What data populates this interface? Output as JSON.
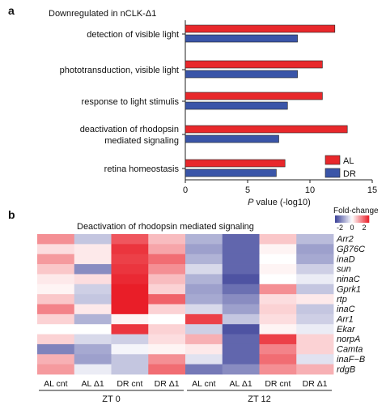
{
  "panel_a": {
    "label": "a",
    "subtitle": "Downregulated in nCLK-Δ1",
    "xlabel_italic": "P",
    "xlabel_rest": " value (-log10)"
  },
  "panel_b": {
    "label": "b",
    "title": "Deactivation of rhodopsin mediated signaling",
    "colorbar_title": "Fold-change",
    "colorbar_ticks": [
      "-2",
      "0",
      "2"
    ]
  },
  "chart_data": [
    {
      "type": "bar",
      "orientation": "horizontal",
      "categories": [
        [
          "detection of visible light"
        ],
        [
          "phototransduction, visible light"
        ],
        [
          "response to light stimulis"
        ],
        [
          "deactivation of rhodopsin",
          "mediated signaling"
        ],
        [
          "retina homeostasis"
        ]
      ],
      "series": [
        {
          "name": "AL",
          "color": "#e8282b",
          "values": [
            12,
            11,
            11,
            13,
            8
          ]
        },
        {
          "name": "DR",
          "color": "#3a55a8",
          "values": [
            9,
            9,
            8.2,
            7.5,
            7.3
          ]
        }
      ],
      "xlim": [
        0,
        15
      ],
      "xticks": [
        "0",
        "5",
        "10",
        "15"
      ],
      "legend_position": "bottom-right"
    },
    {
      "type": "heatmap",
      "genes": [
        "Arr2",
        "Gβ76C",
        "inaD",
        "sun",
        "ninaC",
        "Gprk1",
        "rtp",
        "inaC",
        "Arr1",
        "Ekar",
        "norpA",
        "Camta",
        "inaF−B",
        "rdgB"
      ],
      "columns": [
        "AL cnt",
        "AL Δ1",
        "DR cnt",
        "DR Δ1",
        "AL cnt",
        "AL Δ1",
        "DR cnt",
        "DR Δ1"
      ],
      "groups": [
        {
          "label": "ZT 0",
          "span": [
            0,
            3
          ]
        },
        {
          "label": "ZT 12",
          "span": [
            4,
            7
          ]
        }
      ],
      "value_range": [
        -2,
        2
      ],
      "values": [
        [
          1.0,
          -0.6,
          1.5,
          0.6,
          -0.8,
          -1.6,
          0.5,
          -0.7
        ],
        [
          0.3,
          0.2,
          1.8,
          0.8,
          -1.0,
          -1.6,
          0.1,
          -1.0
        ],
        [
          0.9,
          0.2,
          1.7,
          1.3,
          -0.8,
          -1.6,
          0.0,
          -0.9
        ],
        [
          0.5,
          -1.2,
          1.8,
          1.0,
          -0.4,
          -1.6,
          0.1,
          -0.5
        ],
        [
          0.2,
          0.3,
          1.9,
          0.6,
          -0.8,
          -1.8,
          0.0,
          -0.2
        ],
        [
          0.1,
          -0.5,
          2.0,
          0.4,
          -1.0,
          -1.5,
          1.0,
          -0.6
        ],
        [
          0.5,
          -0.6,
          2.2,
          1.4,
          -0.9,
          -1.2,
          0.3,
          0.2
        ],
        [
          1.1,
          0.2,
          2.0,
          0.4,
          -0.4,
          -1.0,
          0.4,
          -0.6
        ],
        [
          0.4,
          -0.8,
          0.1,
          0.0,
          1.7,
          -0.6,
          0.3,
          -0.5
        ],
        [
          0.0,
          0.0,
          1.8,
          0.4,
          -0.5,
          -1.8,
          0.1,
          -0.2
        ],
        [
          0.4,
          -0.4,
          -0.5,
          0.3,
          0.7,
          -1.6,
          1.7,
          0.4
        ],
        [
          -1.3,
          -0.9,
          -0.1,
          0.1,
          0.2,
          -1.6,
          1.1,
          0.4
        ],
        [
          0.7,
          -1.0,
          -0.6,
          1.0,
          -0.3,
          -1.6,
          1.3,
          -0.3
        ],
        [
          0.9,
          -0.2,
          -0.6,
          1.3,
          -1.4,
          -1.2,
          1.0,
          0.7
        ]
      ]
    }
  ]
}
